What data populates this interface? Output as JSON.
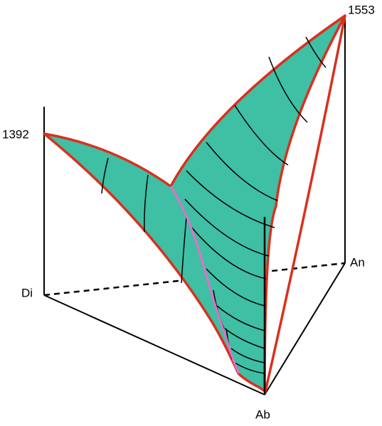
{
  "vertices": [
    {
      "label": "Di",
      "temperature": "1392"
    },
    {
      "label": "An",
      "temperature": "1553"
    },
    {
      "label": "Ab"
    }
  ]
}
